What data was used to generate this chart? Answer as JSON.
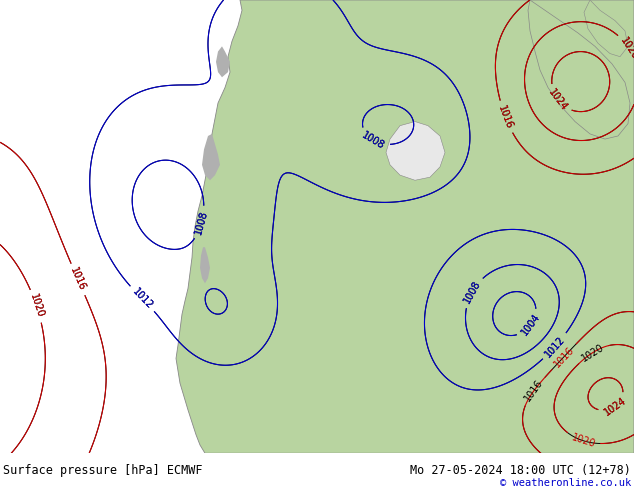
{
  "title_left": "Surface pressure [hPa] ECMWF",
  "title_right": "Mo 27-05-2024 18:00 UTC (12+78)",
  "copyright": "© weatheronline.co.uk",
  "bg_color": "#e8e8e8",
  "land_color_green": "#b8d4a0",
  "land_color_gray": "#b0b0b0",
  "coast_color": "#888888",
  "footer_fontsize": 8.5,
  "label_fontsize": 7,
  "figwidth": 6.34,
  "figheight": 4.9,
  "dpi": 100
}
